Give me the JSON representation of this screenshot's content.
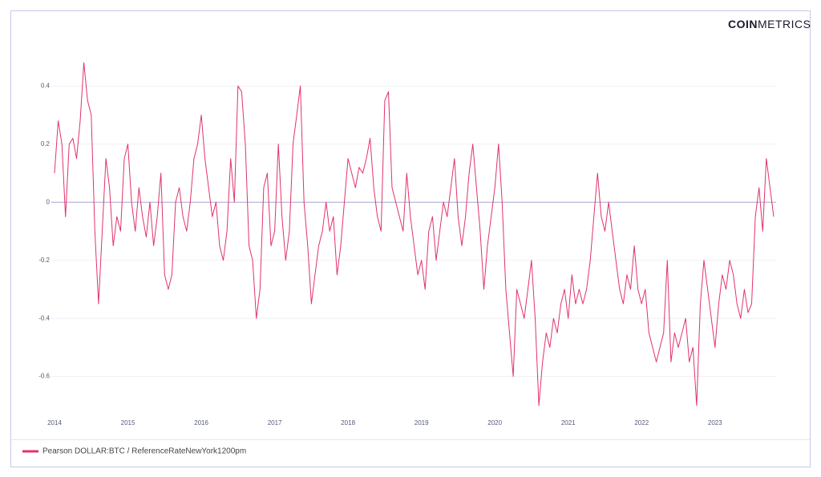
{
  "chart_data": {
    "type": "line",
    "logo": [
      "COIN",
      "METRICS"
    ],
    "x": [
      2014,
      2014.05,
      2014.1,
      2014.15,
      2014.2,
      2014.25,
      2014.3,
      2014.35,
      2014.4,
      2014.45,
      2014.5,
      2014.55,
      2014.6,
      2014.65,
      2014.7,
      2014.75,
      2014.8,
      2014.85,
      2014.9,
      2014.95,
      2015,
      2015.05,
      2015.1,
      2015.15,
      2015.2,
      2015.25,
      2015.3,
      2015.35,
      2015.4,
      2015.45,
      2015.5,
      2015.55,
      2015.6,
      2015.65,
      2015.7,
      2015.75,
      2015.8,
      2015.85,
      2015.9,
      2015.95,
      2016,
      2016.05,
      2016.1,
      2016.15,
      2016.2,
      2016.25,
      2016.3,
      2016.35,
      2016.4,
      2016.45,
      2016.5,
      2016.55,
      2016.6,
      2016.65,
      2016.7,
      2016.75,
      2016.8,
      2016.85,
      2016.9,
      2016.95,
      2017,
      2017.05,
      2017.1,
      2017.15,
      2017.2,
      2017.25,
      2017.3,
      2017.35,
      2017.4,
      2017.45,
      2017.5,
      2017.55,
      2017.6,
      2017.65,
      2017.7,
      2017.75,
      2017.8,
      2017.85,
      2017.9,
      2017.95,
      2018,
      2018.05,
      2018.1,
      2018.15,
      2018.2,
      2018.25,
      2018.3,
      2018.35,
      2018.4,
      2018.45,
      2018.5,
      2018.55,
      2018.6,
      2018.65,
      2018.7,
      2018.75,
      2018.8,
      2018.85,
      2018.9,
      2018.95,
      2019,
      2019.05,
      2019.1,
      2019.15,
      2019.2,
      2019.25,
      2019.3,
      2019.35,
      2019.4,
      2019.45,
      2019.5,
      2019.55,
      2019.6,
      2019.65,
      2019.7,
      2019.75,
      2019.8,
      2019.85,
      2019.9,
      2019.95,
      2020,
      2020.05,
      2020.1,
      2020.15,
      2020.2,
      2020.25,
      2020.3,
      2020.35,
      2020.4,
      2020.45,
      2020.5,
      2020.55,
      2020.6,
      2020.65,
      2020.7,
      2020.75,
      2020.8,
      2020.85,
      2020.9,
      2020.95,
      2021,
      2021.05,
      2021.1,
      2021.15,
      2021.2,
      2021.25,
      2021.3,
      2021.35,
      2021.4,
      2021.45,
      2021.5,
      2021.55,
      2021.6,
      2021.65,
      2021.7,
      2021.75,
      2021.8,
      2021.85,
      2021.9,
      2021.95,
      2022,
      2022.05,
      2022.1,
      2022.15,
      2022.2,
      2022.25,
      2022.3,
      2022.35,
      2022.4,
      2022.45,
      2022.5,
      2022.55,
      2022.6,
      2022.65,
      2022.7,
      2022.75,
      2022.8,
      2022.85,
      2022.9,
      2022.95,
      2023,
      2023.05,
      2023.1,
      2023.15,
      2023.2,
      2023.25,
      2023.3,
      2023.35,
      2023.4,
      2023.45,
      2023.5,
      2023.55,
      2023.6,
      2023.65,
      2023.7,
      2023.75,
      2023.8
    ],
    "series": [
      {
        "name": "Pearson DOLLAR:BTC / ReferenceRateNewYork1200pm",
        "color": "#e0336a",
        "values": [
          0.1,
          0.28,
          0.2,
          -0.05,
          0.2,
          0.22,
          0.15,
          0.28,
          0.48,
          0.35,
          0.3,
          -0.1,
          -0.35,
          -0.1,
          0.15,
          0.05,
          -0.15,
          -0.05,
          -0.1,
          0.15,
          0.2,
          0.0,
          -0.1,
          0.05,
          -0.05,
          -0.12,
          0.0,
          -0.15,
          -0.05,
          0.1,
          -0.25,
          -0.3,
          -0.25,
          0.0,
          0.05,
          -0.05,
          -0.1,
          0.0,
          0.15,
          0.2,
          0.3,
          0.15,
          0.05,
          -0.05,
          0.0,
          -0.15,
          -0.2,
          -0.1,
          0.15,
          0.0,
          0.4,
          0.38,
          0.2,
          -0.15,
          -0.2,
          -0.4,
          -0.3,
          0.05,
          0.1,
          -0.15,
          -0.1,
          0.2,
          -0.05,
          -0.2,
          -0.1,
          0.2,
          0.3,
          0.4,
          0.0,
          -0.15,
          -0.35,
          -0.25,
          -0.15,
          -0.1,
          0.0,
          -0.1,
          -0.05,
          -0.25,
          -0.15,
          0.0,
          0.15,
          0.1,
          0.05,
          0.12,
          0.1,
          0.15,
          0.22,
          0.05,
          -0.05,
          -0.1,
          0.35,
          0.38,
          0.05,
          0.0,
          -0.05,
          -0.1,
          0.1,
          -0.05,
          -0.15,
          -0.25,
          -0.2,
          -0.3,
          -0.1,
          -0.05,
          -0.2,
          -0.1,
          0.0,
          -0.05,
          0.05,
          0.15,
          -0.05,
          -0.15,
          -0.05,
          0.1,
          0.2,
          0.05,
          -0.1,
          -0.3,
          -0.15,
          -0.05,
          0.05,
          0.2,
          0.0,
          -0.3,
          -0.45,
          -0.6,
          -0.3,
          -0.35,
          -0.4,
          -0.3,
          -0.2,
          -0.4,
          -0.7,
          -0.55,
          -0.45,
          -0.5,
          -0.4,
          -0.45,
          -0.35,
          -0.3,
          -0.4,
          -0.25,
          -0.35,
          -0.3,
          -0.35,
          -0.3,
          -0.2,
          -0.05,
          0.1,
          -0.05,
          -0.1,
          0.0,
          -0.1,
          -0.2,
          -0.3,
          -0.35,
          -0.25,
          -0.3,
          -0.15,
          -0.3,
          -0.35,
          -0.3,
          -0.45,
          -0.5,
          -0.55,
          -0.5,
          -0.45,
          -0.2,
          -0.55,
          -0.45,
          -0.5,
          -0.45,
          -0.4,
          -0.55,
          -0.5,
          -0.7,
          -0.35,
          -0.2,
          -0.3,
          -0.4,
          -0.5,
          -0.35,
          -0.25,
          -0.3,
          -0.2,
          -0.25,
          -0.35,
          -0.4,
          -0.3,
          -0.38,
          -0.35,
          -0.05,
          0.05,
          -0.1,
          0.15,
          0.05,
          -0.05
        ]
      }
    ],
    "xlim": [
      2014,
      2023.8
    ],
    "xticks": [
      2014,
      2015,
      2016,
      2017,
      2018,
      2019,
      2020,
      2021,
      2022,
      2023
    ],
    "ylim": [
      -0.75,
      0.5
    ],
    "yticks": [
      -0.6,
      -0.4,
      -0.2,
      0,
      0.2,
      0.4
    ],
    "grid": true
  }
}
